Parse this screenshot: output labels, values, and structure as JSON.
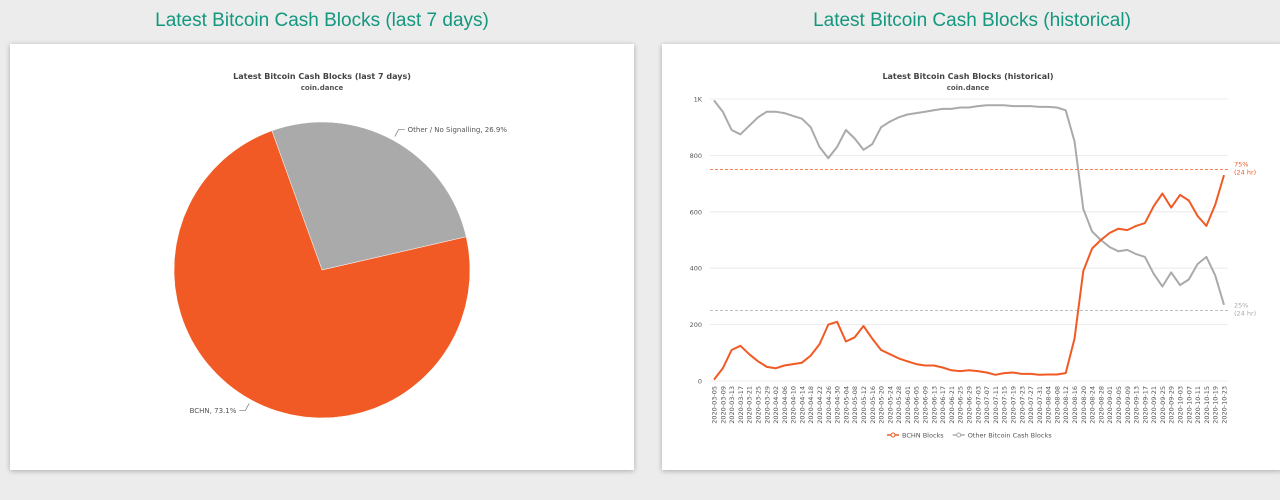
{
  "headings": {
    "left": "Latest Bitcoin Cash Blocks (last 7 days)",
    "right": "Latest Bitcoin Cash Blocks (historical)"
  },
  "colors": {
    "accent": "#13977e",
    "bchn": "#f15a24",
    "other": "#aaaaaa"
  },
  "chart_data": [
    {
      "type": "pie",
      "title": "Latest Bitcoin Cash Blocks (last 7 days)",
      "subtitle": "coin.dance",
      "slices": [
        {
          "label": "Other / No Signalling, 26.9%",
          "name": "Other / No Signalling",
          "value": 26.9,
          "color": "#aaaaaa"
        },
        {
          "label": "BCHN, 73.1%",
          "name": "BCHN",
          "value": 73.1,
          "color": "#f15a24"
        }
      ]
    },
    {
      "type": "line",
      "title": "Latest Bitcoin Cash Blocks (historical)",
      "subtitle": "coin.dance",
      "ylim": [
        0,
        1000
      ],
      "yticks": [
        0,
        200,
        400,
        600,
        800,
        1000
      ],
      "ytick_labels": [
        "0",
        "200",
        "400",
        "600",
        "800",
        "1K"
      ],
      "categories": [
        "2020-03-05",
        "2020-03-09",
        "2020-03-13",
        "2020-03-17",
        "2020-03-21",
        "2020-03-25",
        "2020-03-29",
        "2020-04-02",
        "2020-04-06",
        "2020-04-10",
        "2020-04-14",
        "2020-04-18",
        "2020-04-22",
        "2020-04-26",
        "2020-04-30",
        "2020-05-04",
        "2020-05-08",
        "2020-05-12",
        "2020-05-16",
        "2020-05-20",
        "2020-05-24",
        "2020-05-28",
        "2020-06-01",
        "2020-06-05",
        "2020-06-09",
        "2020-06-13",
        "2020-06-17",
        "2020-06-21",
        "2020-06-25",
        "2020-06-29",
        "2020-07-03",
        "2020-07-07",
        "2020-07-11",
        "2020-07-15",
        "2020-07-19",
        "2020-07-23",
        "2020-07-27",
        "2020-07-31",
        "2020-08-04",
        "2020-08-08",
        "2020-08-12",
        "2020-08-16",
        "2020-08-20",
        "2020-08-24",
        "2020-08-28",
        "2020-09-01",
        "2020-09-05",
        "2020-09-09",
        "2020-09-13",
        "2020-09-17",
        "2020-09-21",
        "2020-09-25",
        "2020-09-29",
        "2020-10-03",
        "2020-10-07",
        "2020-10-11",
        "2020-10-15",
        "2020-10-19",
        "2020-10-23"
      ],
      "series": [
        {
          "name": "BCHN Blocks",
          "color": "#f15a24",
          "values": [
            5,
            45,
            110,
            125,
            95,
            70,
            50,
            45,
            55,
            60,
            65,
            90,
            130,
            200,
            210,
            140,
            155,
            195,
            150,
            110,
            95,
            80,
            70,
            60,
            55,
            55,
            48,
            38,
            35,
            38,
            35,
            30,
            22,
            28,
            30,
            25,
            25,
            22,
            23,
            23,
            28,
            150,
            390,
            470,
            500,
            525,
            540,
            535,
            550,
            560,
            620,
            665,
            615,
            660,
            640,
            585,
            550,
            625,
            730
          ]
        },
        {
          "name": "Other Bitcoin Cash Blocks",
          "color": "#aaaaaa",
          "values": [
            995,
            955,
            890,
            875,
            905,
            935,
            955,
            955,
            950,
            940,
            930,
            900,
            830,
            790,
            830,
            890,
            860,
            820,
            840,
            900,
            920,
            935,
            945,
            950,
            955,
            960,
            965,
            965,
            970,
            970,
            975,
            978,
            978,
            978,
            975,
            975,
            975,
            972,
            972,
            970,
            960,
            850,
            610,
            530,
            500,
            475,
            460,
            465,
            450,
            440,
            380,
            335,
            385,
            340,
            360,
            415,
            440,
            375,
            270
          ]
        }
      ],
      "reference_lines": [
        {
          "value": 750,
          "label_top": "75%",
          "label_bottom": "(24 hr)",
          "color": "#f15a24"
        },
        {
          "value": 250,
          "label_top": "25%",
          "label_bottom": "(24 hr)",
          "color": "#aaaaaa"
        }
      ]
    }
  ]
}
